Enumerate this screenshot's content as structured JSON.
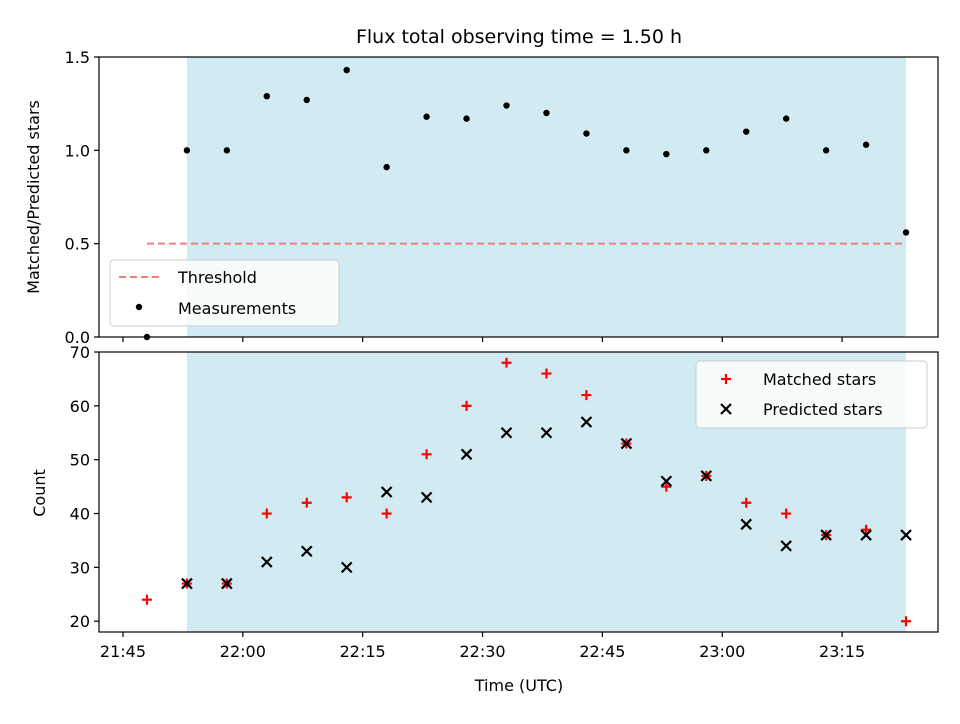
{
  "chart_data": [
    {
      "type": "scatter",
      "title": "Flux total observing time = 1.50 h",
      "xlabel": "",
      "ylabel": "Matched/Predicted stars",
      "xlim": [
        "21:42",
        "23:27"
      ],
      "ylim": [
        0,
        1.5
      ],
      "yticks": [
        "0.0",
        "0.5",
        "1.0",
        "1.5"
      ],
      "shaded_span": [
        "21:53",
        "23:23"
      ],
      "shade_color": "#add8e6",
      "legend_position": "lower-left",
      "threshold": {
        "name": "Threshold",
        "value": 0.5,
        "x_range": [
          "21:48",
          "23:23"
        ],
        "color": "#f08080",
        "style": "dashed"
      },
      "series": [
        {
          "name": "Measurements",
          "marker": "dot",
          "color": "#000000",
          "x": [
            "21:48",
            "21:53",
            "21:58",
            "22:03",
            "22:08",
            "22:13",
            "22:18",
            "22:23",
            "22:28",
            "22:33",
            "22:38",
            "22:43",
            "22:48",
            "22:53",
            "22:58",
            "23:03",
            "23:08",
            "23:13",
            "23:18",
            "23:23"
          ],
          "y": [
            0.0,
            1.0,
            1.0,
            1.29,
            1.27,
            1.43,
            0.91,
            1.18,
            1.17,
            1.24,
            1.2,
            1.09,
            1.0,
            0.98,
            1.0,
            1.1,
            1.17,
            1.0,
            1.03,
            0.56
          ]
        }
      ]
    },
    {
      "type": "scatter",
      "title": "",
      "xlabel": "Time (UTC)",
      "ylabel": "Count",
      "xlim": [
        "21:42",
        "23:27"
      ],
      "ylim": [
        18,
        70
      ],
      "xticks": [
        "21:45",
        "22:00",
        "22:15",
        "22:30",
        "22:45",
        "23:00",
        "23:15"
      ],
      "yticks": [
        "20",
        "30",
        "40",
        "50",
        "60",
        "70"
      ],
      "shaded_span": [
        "21:53",
        "23:23"
      ],
      "shade_color": "#add8e6",
      "legend_position": "top-right",
      "series": [
        {
          "name": "Matched stars",
          "marker": "plus",
          "color": "#ff0000",
          "x": [
            "21:48",
            "21:53",
            "21:58",
            "22:03",
            "22:08",
            "22:13",
            "22:18",
            "22:23",
            "22:28",
            "22:33",
            "22:38",
            "22:43",
            "22:48",
            "22:53",
            "22:58",
            "23:03",
            "23:08",
            "23:13",
            "23:18",
            "23:23"
          ],
          "y": [
            24,
            27,
            27,
            40,
            42,
            43,
            40,
            51,
            60,
            68,
            66,
            62,
            53,
            45,
            47,
            42,
            40,
            36,
            37,
            20
          ]
        },
        {
          "name": "Predicted stars",
          "marker": "x",
          "color": "#000000",
          "x": [
            "21:53",
            "21:58",
            "22:03",
            "22:08",
            "22:13",
            "22:18",
            "22:23",
            "22:28",
            "22:33",
            "22:38",
            "22:43",
            "22:48",
            "22:53",
            "22:58",
            "23:03",
            "23:08",
            "23:13",
            "23:18",
            "23:23"
          ],
          "y": [
            27,
            27,
            31,
            33,
            30,
            44,
            43,
            51,
            55,
            55,
            57,
            53,
            46,
            47,
            38,
            34,
            36,
            36,
            36
          ]
        }
      ]
    }
  ]
}
